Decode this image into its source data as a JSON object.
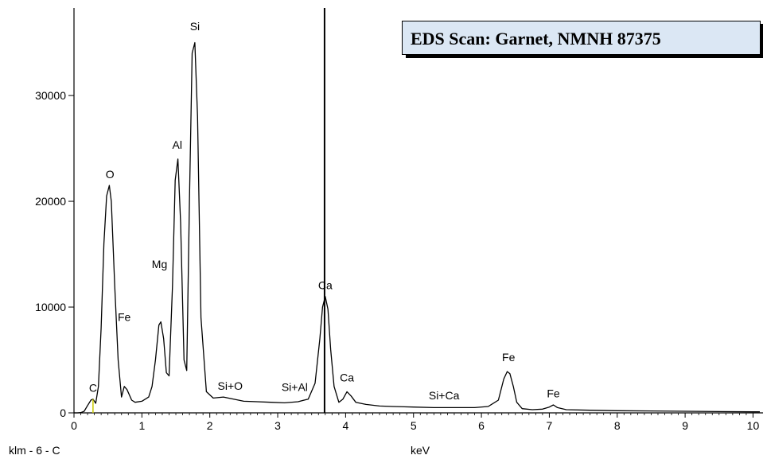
{
  "chart_data": {
    "type": "line",
    "title": "EDS Scan:  Garnet, NMNH 87375",
    "xlabel": "keV",
    "ylabel": "",
    "footnote": "klm - 6 - C",
    "xlim": [
      0,
      10.1
    ],
    "ylim": [
      0,
      36500
    ],
    "x_ticks": [
      0,
      1,
      2,
      3,
      4,
      5,
      6,
      7,
      8,
      9,
      10
    ],
    "y_ticks": [
      0,
      10000,
      20000,
      30000
    ],
    "cursor_kev": 3.69,
    "colors": {
      "spectrum": "#000000",
      "cursor": "#000000",
      "marker": "#c8c800",
      "title_bg": "#dbe7f4"
    },
    "series": [
      {
        "x": [
          0.0,
          0.05,
          0.1,
          0.15,
          0.2,
          0.25,
          0.28,
          0.32,
          0.36,
          0.4,
          0.44,
          0.48,
          0.52,
          0.55,
          0.6,
          0.65,
          0.7,
          0.74,
          0.78,
          0.85,
          0.9,
          1.0,
          1.1,
          1.15,
          1.2,
          1.25,
          1.28,
          1.32,
          1.36,
          1.4,
          1.45,
          1.49,
          1.53,
          1.57,
          1.62,
          1.66,
          1.7,
          1.74,
          1.78,
          1.82,
          1.87,
          1.95,
          2.05,
          2.2,
          2.35,
          2.5,
          2.7,
          2.9,
          3.1,
          3.3,
          3.45,
          3.55,
          3.62,
          3.66,
          3.7,
          3.74,
          3.78,
          3.83,
          3.9,
          3.96,
          4.02,
          4.08,
          4.15,
          4.3,
          4.5,
          4.7,
          5.0,
          5.3,
          5.6,
          5.9,
          6.1,
          6.25,
          6.33,
          6.38,
          6.42,
          6.47,
          6.52,
          6.6,
          6.75,
          6.9,
          7.0,
          7.06,
          7.12,
          7.25,
          7.6,
          8.0,
          8.5,
          9.0,
          9.5,
          10.0,
          10.1
        ],
        "values": [
          0,
          0,
          20,
          150,
          700,
          1200,
          1300,
          900,
          2500,
          8000,
          16000,
          20500,
          21500,
          20000,
          12000,
          5000,
          1500,
          2500,
          2200,
          1200,
          1000,
          1100,
          1500,
          2500,
          5000,
          8300,
          8600,
          7000,
          3800,
          3500,
          12000,
          22000,
          24000,
          18000,
          5000,
          4000,
          20000,
          34000,
          35000,
          28000,
          9000,
          2000,
          1400,
          1500,
          1300,
          1100,
          1050,
          1000,
          950,
          1050,
          1300,
          2800,
          7000,
          10000,
          11000,
          9800,
          6000,
          2500,
          1000,
          1300,
          2000,
          1600,
          1000,
          800,
          650,
          600,
          550,
          500,
          500,
          500,
          600,
          1200,
          3200,
          3900,
          3700,
          2500,
          1000,
          400,
          300,
          350,
          550,
          750,
          500,
          300,
          250,
          200,
          180,
          150,
          120,
          100,
          100
        ]
      }
    ],
    "peak_labels": [
      {
        "text": "C",
        "x": 0.28,
        "y": 1300
      },
      {
        "text": "O",
        "x": 0.53,
        "y": 21500
      },
      {
        "text": "Fe",
        "x": 0.74,
        "y": 8000
      },
      {
        "text": "Mg",
        "x": 1.26,
        "y": 13000
      },
      {
        "text": "Al",
        "x": 1.52,
        "y": 24300
      },
      {
        "text": "Si",
        "x": 1.78,
        "y": 35500
      },
      {
        "text": "Si+O",
        "x": 2.3,
        "y": 1500
      },
      {
        "text": "Si+Al",
        "x": 3.25,
        "y": 1400
      },
      {
        "text": "Ca",
        "x": 3.7,
        "y": 11000
      },
      {
        "text": "Ca",
        "x": 4.02,
        "y": 2300
      },
      {
        "text": "Si+Ca",
        "x": 5.45,
        "y": 600
      },
      {
        "text": "Fe",
        "x": 6.4,
        "y": 4200
      },
      {
        "text": "Fe",
        "x": 7.06,
        "y": 800
      }
    ]
  }
}
